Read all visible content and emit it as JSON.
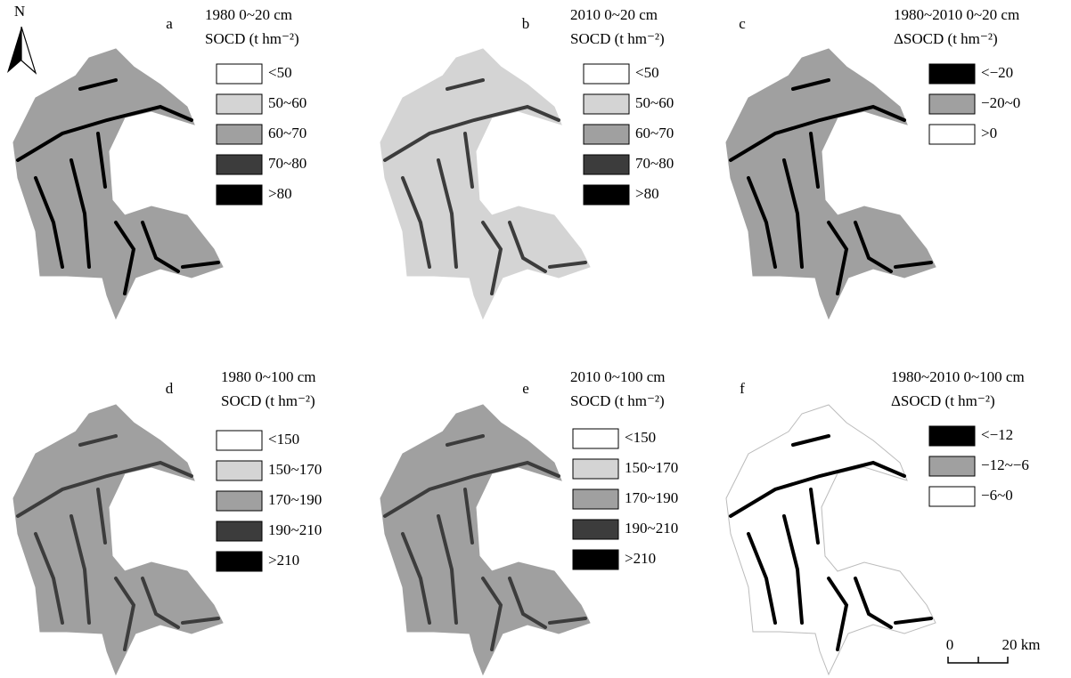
{
  "north_label": "N",
  "scale_bar": {
    "start": "0",
    "end": "20 km"
  },
  "panels": [
    {
      "letter": "a",
      "title": "1980 0~20 cm",
      "unit": "SOCD (t hm⁻²)",
      "legend": [
        {
          "label": "<50",
          "color": "#ffffff"
        },
        {
          "label": "50~60",
          "color": "#d4d4d4"
        },
        {
          "label": "60~70",
          "color": "#a0a0a0"
        },
        {
          "label": "70~80",
          "color": "#3c3c3c"
        },
        {
          "label": ">80",
          "color": "#000000"
        }
      ]
    },
    {
      "letter": "b",
      "title": "2010 0~20 cm",
      "unit": "SOCD (t hm⁻²)",
      "legend": [
        {
          "label": "<50",
          "color": "#ffffff"
        },
        {
          "label": "50~60",
          "color": "#d4d4d4"
        },
        {
          "label": "60~70",
          "color": "#a0a0a0"
        },
        {
          "label": "70~80",
          "color": "#3c3c3c"
        },
        {
          "label": ">80",
          "color": "#000000"
        }
      ]
    },
    {
      "letter": "c",
      "title": "1980~2010 0~20 cm",
      "unit": "ΔSOCD (t hm⁻²)",
      "legend": [
        {
          "label": "<−20",
          "color": "#000000"
        },
        {
          "label": "−20~0",
          "color": "#a0a0a0"
        },
        {
          "label": ">0",
          "color": "#ffffff"
        }
      ]
    },
    {
      "letter": "d",
      "title": "1980 0~100 cm",
      "unit": "SOCD (t hm⁻²)",
      "legend": [
        {
          "label": "<150",
          "color": "#ffffff"
        },
        {
          "label": "150~170",
          "color": "#d4d4d4"
        },
        {
          "label": "170~190",
          "color": "#a0a0a0"
        },
        {
          "label": "190~210",
          "color": "#3c3c3c"
        },
        {
          "label": ">210",
          "color": "#000000"
        }
      ]
    },
    {
      "letter": "e",
      "title": "2010 0~100 cm",
      "unit": "SOCD (t hm⁻²)",
      "legend": [
        {
          "label": "<150",
          "color": "#ffffff"
        },
        {
          "label": "150~170",
          "color": "#d4d4d4"
        },
        {
          "label": "170~190",
          "color": "#a0a0a0"
        },
        {
          "label": "190~210",
          "color": "#3c3c3c"
        },
        {
          "label": ">210",
          "color": "#000000"
        }
      ]
    },
    {
      "letter": "f",
      "title": "1980~2010 0~100 cm",
      "unit": "ΔSOCD (t hm⁻²)",
      "legend": [
        {
          "label": "<−12",
          "color": "#000000"
        },
        {
          "label": "−12~−6",
          "color": "#a0a0a0"
        },
        {
          "label": "−6~0",
          "color": "#ffffff"
        }
      ]
    }
  ]
}
